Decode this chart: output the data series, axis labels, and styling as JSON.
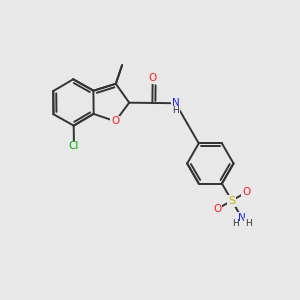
{
  "background_color": "#e8e8e8",
  "bond_color": "#333333",
  "figsize": [
    3.0,
    3.0
  ],
  "dpi": 100,
  "atom_colors": {
    "Cl": "#00aa00",
    "O": "#ff2020",
    "N": "#2020ff",
    "S": "#bbbb00",
    "C": "#333333",
    "H": "#333333"
  },
  "bond_lw": 1.4
}
